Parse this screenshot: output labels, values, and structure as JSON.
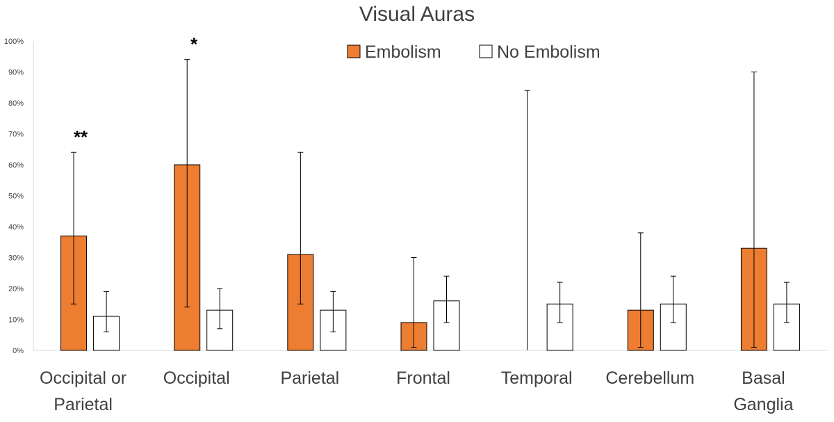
{
  "chart_data": {
    "type": "bar",
    "title": "Visual Auras",
    "xlabel": "",
    "ylabel": "",
    "ylim": [
      0,
      100
    ],
    "y_ticks": [
      "0%",
      "10%",
      "20%",
      "30%",
      "40%",
      "50%",
      "60%",
      "70%",
      "80%",
      "90%",
      "100%"
    ],
    "categories": [
      [
        "Occipital or",
        "Parietal"
      ],
      [
        "Occipital"
      ],
      [
        "Parietal"
      ],
      [
        "Frontal"
      ],
      [
        "Temporal"
      ],
      [
        "Cerebellum"
      ],
      [
        "Basal",
        "Ganglia"
      ]
    ],
    "series": [
      {
        "name": "Embolism",
        "color": "#ed7d31",
        "values": [
          37,
          60,
          31,
          9,
          0,
          13,
          33
        ],
        "error_low": [
          15,
          14,
          15,
          1,
          0,
          1,
          1
        ],
        "error_high": [
          64,
          94,
          64,
          30,
          84,
          38,
          90
        ]
      },
      {
        "name": "No Embolism",
        "color": "#ffffff",
        "values": [
          11,
          13,
          13,
          16,
          15,
          15,
          15
        ],
        "error_low": [
          6,
          7,
          6,
          9,
          9,
          9,
          9
        ],
        "error_high": [
          19,
          20,
          19,
          24,
          22,
          24,
          22
        ]
      }
    ],
    "annotations": [
      {
        "category_index": 0,
        "text": "**"
      },
      {
        "category_index": 1,
        "text": "*"
      }
    ],
    "legend_position": "top",
    "grid": false
  }
}
